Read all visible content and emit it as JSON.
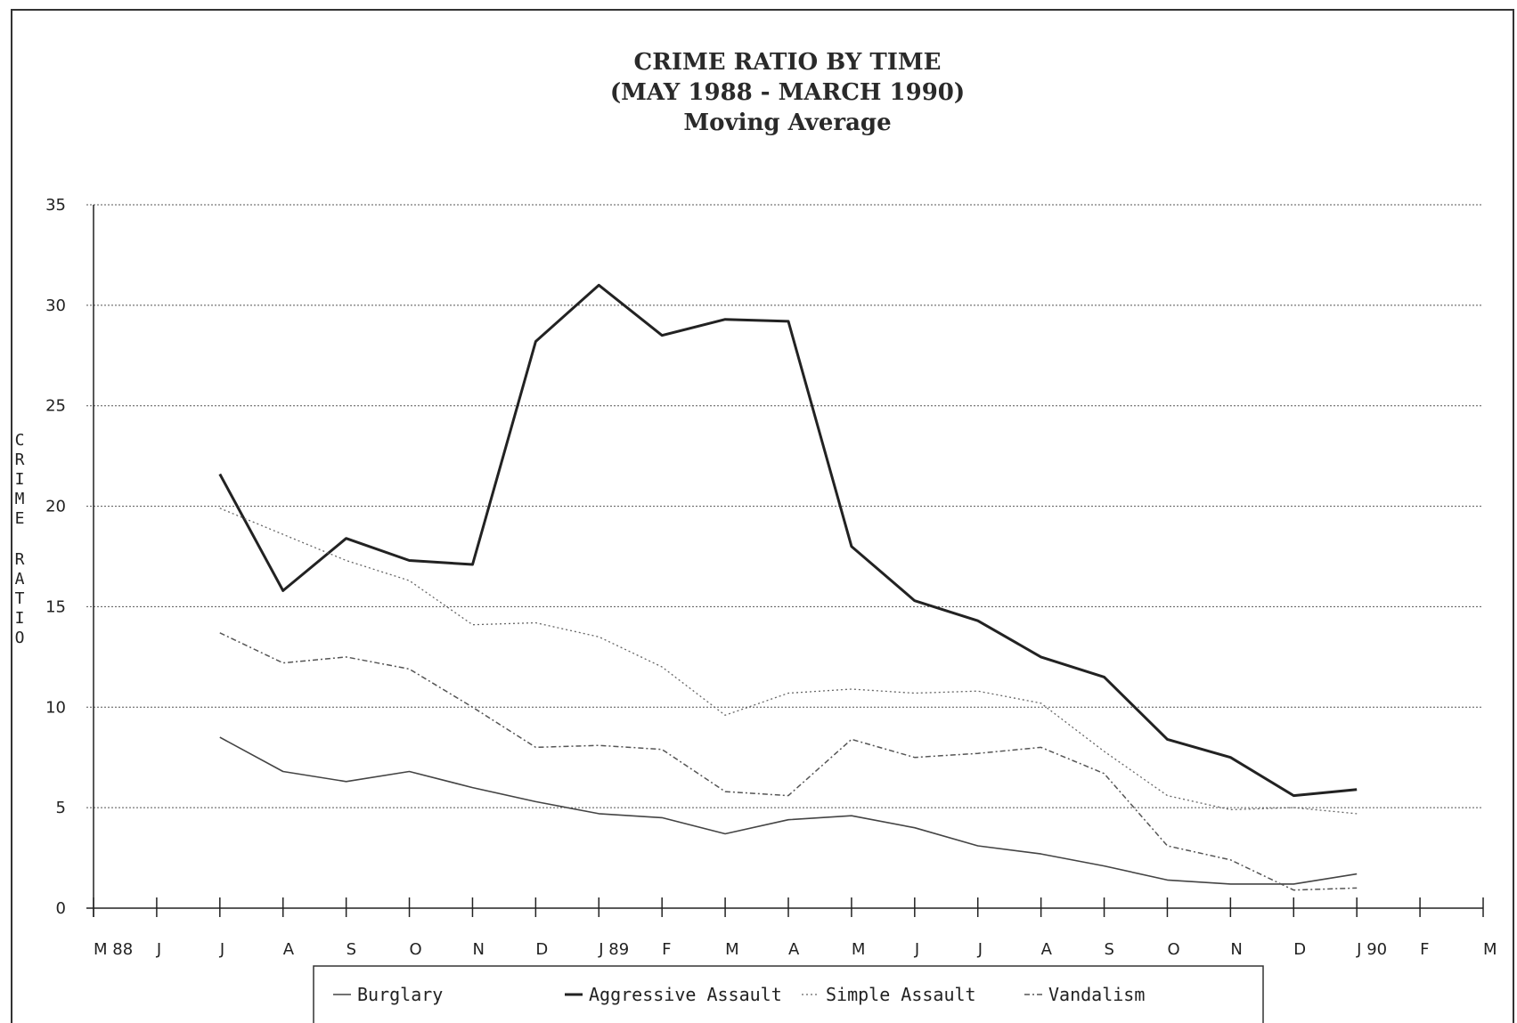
{
  "chart_data": {
    "type": "line",
    "title_lines": [
      "CRIME RATIO BY TIME",
      "(MAY 1988 - MARCH 1990)",
      "Moving Average"
    ],
    "ylabel": "CRIME RATIO",
    "ylim": [
      0,
      35
    ],
    "yticks": [
      0,
      5,
      10,
      15,
      20,
      25,
      30,
      35
    ],
    "grid": true,
    "legend_position": "bottom",
    "x_tick_labels": [
      "M 88",
      "J",
      "J",
      "A",
      "S",
      "O",
      "N",
      "D",
      "J 89",
      "F",
      "M",
      "A",
      "M",
      "J",
      "J",
      "A",
      "S",
      "O",
      "N",
      "D",
      "J 90",
      "F",
      "M"
    ],
    "series": [
      {
        "name": "Burglary",
        "style": "thin-solid",
        "color": "#444444",
        "values": [
          null,
          null,
          8.5,
          6.8,
          6.3,
          6.8,
          6.0,
          5.3,
          4.7,
          4.5,
          3.7,
          4.4,
          4.6,
          4.0,
          3.1,
          2.7,
          2.1,
          1.4,
          1.2,
          1.2,
          1.7,
          null,
          null
        ]
      },
      {
        "name": "Aggressive Assault",
        "style": "thick-solid",
        "color": "#222222",
        "values": [
          null,
          null,
          21.6,
          15.8,
          18.4,
          17.3,
          17.1,
          28.2,
          31.0,
          28.5,
          29.3,
          29.2,
          18.0,
          15.3,
          14.3,
          12.5,
          11.5,
          8.4,
          7.5,
          5.6,
          5.9,
          null,
          null
        ]
      },
      {
        "name": "Simple Assault",
        "style": "dotted",
        "color": "#666666",
        "values": [
          null,
          null,
          19.9,
          18.6,
          17.3,
          16.3,
          14.1,
          14.2,
          13.5,
          12.0,
          9.6,
          10.7,
          10.9,
          10.7,
          10.8,
          10.2,
          7.8,
          5.6,
          4.9,
          5.0,
          4.7,
          null,
          null
        ]
      },
      {
        "name": "Vandalism",
        "style": "dash-dot",
        "color": "#555555",
        "values": [
          null,
          null,
          13.7,
          12.2,
          12.5,
          11.9,
          10.0,
          8.0,
          8.1,
          7.9,
          5.8,
          5.6,
          8.4,
          7.5,
          7.7,
          8.0,
          6.7,
          3.1,
          2.4,
          0.9,
          1.0,
          null,
          null
        ]
      }
    ]
  }
}
